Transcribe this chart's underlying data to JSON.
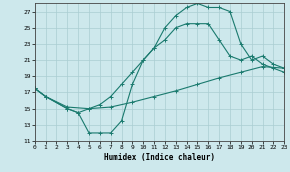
{
  "xlabel": "Humidex (Indice chaleur)",
  "xlim": [
    0,
    23
  ],
  "ylim": [
    11,
    28
  ],
  "yticks": [
    11,
    13,
    15,
    17,
    19,
    21,
    23,
    25,
    27
  ],
  "xticks": [
    0,
    1,
    2,
    3,
    4,
    5,
    6,
    7,
    8,
    9,
    10,
    11,
    12,
    13,
    14,
    15,
    16,
    17,
    18,
    19,
    20,
    21,
    22,
    23
  ],
  "bg_color": "#cde8ec",
  "line_color": "#1a7a6e",
  "grid_color": "#aacdd2",
  "curve1_x": [
    0,
    1,
    3,
    4,
    5,
    6,
    7,
    8,
    9,
    10,
    11,
    12,
    13,
    14,
    15,
    16,
    17,
    18,
    19,
    20,
    21,
    22,
    23
  ],
  "curve1_y": [
    17.5,
    16.5,
    15.0,
    14.5,
    12.0,
    12.0,
    12.0,
    13.5,
    18.0,
    21.0,
    22.5,
    25.0,
    26.5,
    27.5,
    28.0,
    27.5,
    27.5,
    27.0,
    23.0,
    21.0,
    21.5,
    20.5,
    20.0
  ],
  "curve2_x": [
    0,
    1,
    3,
    5,
    7,
    9,
    11,
    13,
    15,
    17,
    19,
    21,
    23
  ],
  "curve2_y": [
    17.5,
    16.5,
    15.2,
    15.0,
    15.2,
    15.8,
    16.5,
    17.2,
    18.0,
    18.8,
    19.5,
    20.2,
    20.0
  ],
  "curve3_x": [
    0,
    1,
    3,
    4,
    5,
    6,
    7,
    8,
    9,
    10,
    11,
    12,
    13,
    14,
    15,
    16,
    17,
    18,
    19,
    20,
    21,
    22,
    23
  ],
  "curve3_y": [
    17.5,
    16.5,
    15.0,
    14.5,
    15.0,
    15.5,
    16.5,
    18.0,
    19.5,
    21.0,
    22.5,
    23.5,
    25.0,
    25.5,
    25.5,
    25.5,
    23.5,
    21.5,
    21.0,
    21.5,
    20.5,
    20.0,
    19.5
  ]
}
